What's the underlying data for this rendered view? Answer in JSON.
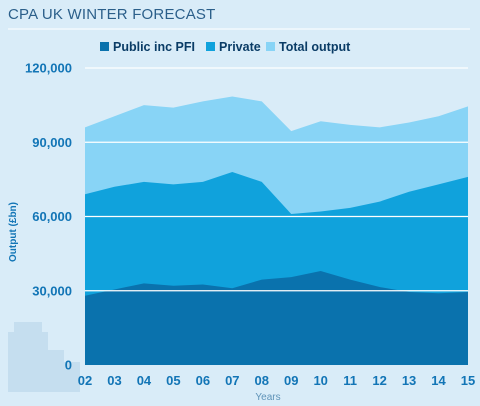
{
  "header": {
    "title": "CPA UK WINTER FORECAST"
  },
  "colors": {
    "background": "#d9ecf8",
    "public": "#0a72ad",
    "private": "#10a2dc",
    "total": "#88d4f6",
    "grid": "#ffffff",
    "title": "#2b5f8a",
    "tick": "#1275b6"
  },
  "chart_data": {
    "type": "area",
    "title": "CPA UK WINTER FORECAST",
    "xlabel": "Years",
    "ylabel": "Output (£bn)",
    "ylim": [
      0,
      120000
    ],
    "yticks": [
      0,
      30000,
      60000,
      90000,
      120000
    ],
    "ytick_labels": [
      "0",
      "30,000",
      "60,000",
      "90,000",
      "120,000"
    ],
    "grid": true,
    "legend_position": "top",
    "x": [
      "02",
      "03",
      "04",
      "05",
      "06",
      "07",
      "08",
      "09",
      "10",
      "11",
      "12",
      "13",
      "14",
      "15"
    ],
    "series": [
      {
        "name": "Public inc PFI",
        "values": [
          28000,
          30500,
          33000,
          32000,
          32500,
          31000,
          34500,
          35500,
          38000,
          34500,
          31500,
          29500,
          29000,
          29500
        ]
      },
      {
        "name": "Private",
        "values": [
          69000,
          72000,
          74000,
          73000,
          74000,
          78000,
          74000,
          61000,
          62000,
          63500,
          66000,
          70000,
          73000,
          76000
        ]
      },
      {
        "name": "Total output",
        "values": [
          96000,
          100500,
          105000,
          104000,
          106500,
          108500,
          106500,
          94500,
          98500,
          97000,
          96000,
          98000,
          100500,
          104500
        ]
      }
    ]
  }
}
